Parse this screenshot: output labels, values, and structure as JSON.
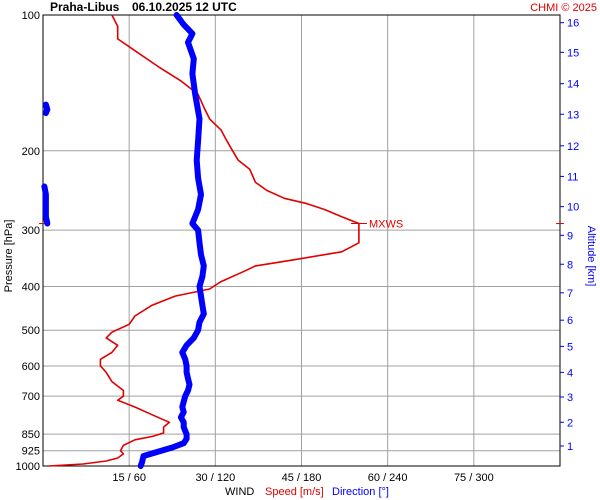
{
  "header": {
    "station": "Praha-Libus",
    "datetime": "06.10.2025 12 UTC",
    "credit": "CHMI © 2025"
  },
  "colors": {
    "speed": "#e00000",
    "direction": "#0000ff",
    "grid": "#a0a0a0"
  },
  "chart_data": {
    "type": "line",
    "title": "Praha-Libus    06.10.2025 12 UTC",
    "ylabel_left": "Pressure [hPa]",
    "ylabel_right": "Altitude [km]",
    "xlabel": {
      "prefix": "WIND",
      "speed": "Speed [m/s]",
      "direction": "Direction [°]"
    },
    "y_scale": "log",
    "pressure_ticks": [
      100,
      200,
      300,
      400,
      500,
      600,
      700,
      850,
      925,
      1000
    ],
    "altitude_ticks": [
      {
        "km": 1,
        "p": 903
      },
      {
        "km": 2,
        "p": 800
      },
      {
        "km": 3,
        "p": 703
      },
      {
        "km": 4,
        "p": 620
      },
      {
        "km": 5,
        "p": 543
      },
      {
        "km": 6,
        "p": 475
      },
      {
        "km": 7,
        "p": 413
      },
      {
        "km": 8,
        "p": 357
      },
      {
        "km": 9,
        "p": 308
      },
      {
        "km": 10,
        "p": 266
      },
      {
        "km": 11,
        "p": 228
      },
      {
        "km": 12,
        "p": 195
      },
      {
        "km": 13,
        "p": 166
      },
      {
        "km": 14,
        "p": 142
      },
      {
        "km": 15,
        "p": 121
      },
      {
        "km": 16,
        "p": 104
      }
    ],
    "x_ticks": [
      {
        "speed": 15,
        "dir": 60,
        "label": "15 / 60"
      },
      {
        "speed": 30,
        "dir": 120,
        "label": "30 / 120"
      },
      {
        "speed": 45,
        "dir": 180,
        "label": "45 / 180"
      },
      {
        "speed": 60,
        "dir": 240,
        "label": "60 / 240"
      },
      {
        "speed": 75,
        "dir": 300,
        "label": "75 / 300"
      }
    ],
    "speed_max": 90,
    "annotation": {
      "label": "MXWS",
      "p": 290,
      "speed": 55
    },
    "series": [
      {
        "name": "Speed [m/s]",
        "points": [
          [
            1000,
            1
          ],
          [
            990,
            7
          ],
          [
            975,
            11
          ],
          [
            960,
            13
          ],
          [
            940,
            14
          ],
          [
            925,
            13.5
          ],
          [
            900,
            14
          ],
          [
            875,
            16
          ],
          [
            860,
            19
          ],
          [
            845,
            21
          ],
          [
            820,
            21
          ],
          [
            800,
            22
          ],
          [
            780,
            20
          ],
          [
            760,
            18
          ],
          [
            740,
            16
          ],
          [
            715,
            13
          ],
          [
            700,
            14
          ],
          [
            680,
            14
          ],
          [
            650,
            12
          ],
          [
            620,
            11
          ],
          [
            600,
            10
          ],
          [
            580,
            10
          ],
          [
            560,
            12
          ],
          [
            540,
            13
          ],
          [
            520,
            11
          ],
          [
            505,
            12
          ],
          [
            485,
            15
          ],
          [
            465,
            16
          ],
          [
            440,
            19
          ],
          [
            420,
            23
          ],
          [
            405,
            29
          ],
          [
            390,
            31
          ],
          [
            370,
            35
          ],
          [
            360,
            37
          ],
          [
            350,
            43
          ],
          [
            335,
            52
          ],
          [
            320,
            55
          ],
          [
            310,
            55
          ],
          [
            300,
            55
          ],
          [
            290,
            55
          ],
          [
            280,
            52
          ],
          [
            270,
            49
          ],
          [
            262,
            46
          ],
          [
            255,
            42
          ],
          [
            245,
            39
          ],
          [
            235,
            37
          ],
          [
            220,
            36
          ],
          [
            210,
            34
          ],
          [
            200,
            33
          ],
          [
            190,
            32
          ],
          [
            180,
            31
          ],
          [
            170,
            29
          ],
          [
            160,
            28
          ],
          [
            150,
            27
          ],
          [
            140,
            24
          ],
          [
            130,
            20
          ],
          [
            120,
            16
          ],
          [
            113,
            13
          ],
          [
            106,
            13
          ],
          [
            100,
            12
          ]
        ]
      },
      {
        "name": "Direction [°]",
        "points": [
          [
            1000,
            68
          ],
          [
            980,
            69
          ],
          [
            950,
            70
          ],
          [
            930,
            80
          ],
          [
            910,
            90
          ],
          [
            890,
            98
          ],
          [
            870,
            100
          ],
          [
            850,
            100
          ],
          [
            820,
            98
          ],
          [
            800,
            98
          ],
          [
            780,
            96
          ],
          [
            760,
            98
          ],
          [
            740,
            97
          ],
          [
            720,
            98
          ],
          [
            700,
            99
          ],
          [
            680,
            101
          ],
          [
            660,
            102
          ],
          [
            640,
            101
          ],
          [
            620,
            100
          ],
          [
            600,
            100
          ],
          [
            580,
            99
          ],
          [
            560,
            97
          ],
          [
            540,
            100
          ],
          [
            520,
            105
          ],
          [
            500,
            108
          ],
          [
            480,
            109
          ],
          [
            460,
            112
          ],
          [
            440,
            111
          ],
          [
            420,
            110
          ],
          [
            400,
            109
          ],
          [
            380,
            111
          ],
          [
            360,
            112
          ],
          [
            340,
            110
          ],
          [
            320,
            109
          ],
          [
            300,
            108
          ],
          [
            290,
            104
          ],
          [
            270,
            108
          ],
          [
            250,
            110
          ],
          [
            230,
            108
          ],
          [
            210,
            107
          ],
          [
            190,
            108
          ],
          [
            170,
            109
          ],
          [
            150,
            106
          ],
          [
            135,
            104
          ],
          [
            125,
            105
          ],
          [
            115,
            101
          ],
          [
            110,
            104
          ],
          [
            105,
            98
          ],
          [
            100,
            93
          ]
        ]
      },
      {
        "name": "Direction [°] (wrapped)",
        "points": [
          [
            165,
            2
          ],
          [
            162,
            3
          ],
          [
            158,
            2
          ],
          [
            240,
            1
          ],
          [
            250,
            2
          ],
          [
            265,
            2
          ],
          [
            280,
            2
          ],
          [
            290,
            3
          ]
        ]
      }
    ]
  }
}
